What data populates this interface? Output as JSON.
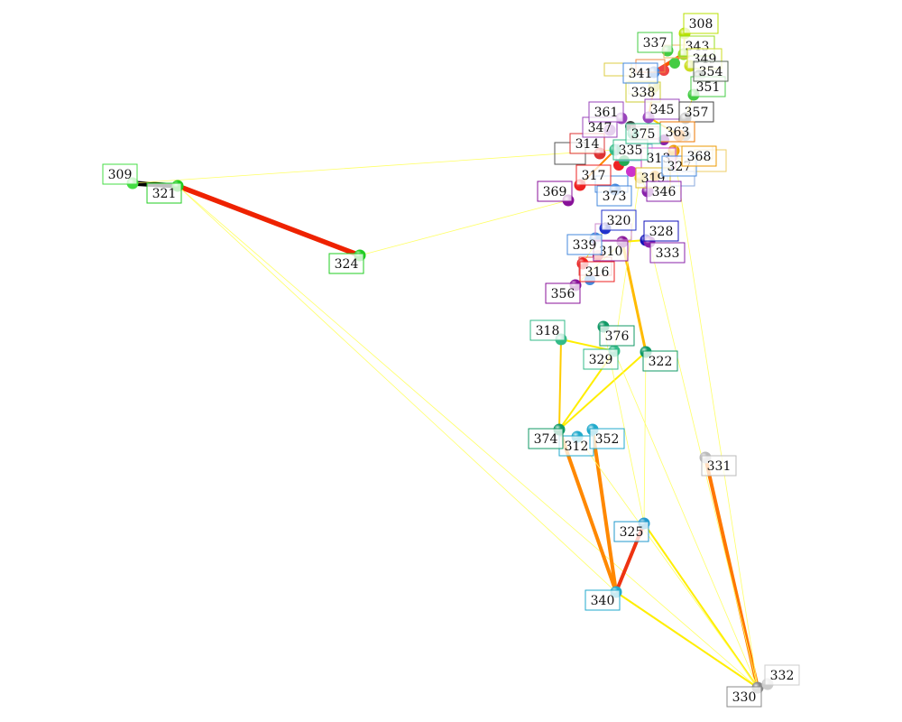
{
  "graph": {
    "nodes": [
      {
        "id": "308",
        "label": "308",
        "color": "#b8e000"
      },
      {
        "id": "309",
        "label": "309",
        "color": "#44dd44"
      },
      {
        "id": "310",
        "label": "310",
        "color": "#8b1a9b"
      },
      {
        "id": "312",
        "label": "312",
        "color": "#22aacc"
      },
      {
        "id": "313",
        "label": "313",
        "color": "#cc44cc"
      },
      {
        "id": "314",
        "label": "314",
        "color": "#dd3333"
      },
      {
        "id": "316",
        "label": "316",
        "color": "#ee2222"
      },
      {
        "id": "317",
        "label": "317",
        "color": "#ee2222"
      },
      {
        "id": "318",
        "label": "318",
        "color": "#33bb88"
      },
      {
        "id": "319",
        "label": "319",
        "color": "#ddbb22"
      },
      {
        "id": "320",
        "label": "320",
        "color": "#2233cc"
      },
      {
        "id": "321",
        "label": "321",
        "color": "#22cc22"
      },
      {
        "id": "322",
        "label": "322",
        "color": "#119966"
      },
      {
        "id": "324",
        "label": "324",
        "color": "#22cc22"
      },
      {
        "id": "325",
        "label": "325",
        "color": "#2299cc"
      },
      {
        "id": "327",
        "label": "327",
        "color": "#4488dd"
      },
      {
        "id": "328",
        "label": "328",
        "color": "#1111bb"
      },
      {
        "id": "329",
        "label": "329",
        "color": "#33bb88"
      },
      {
        "id": "330",
        "label": "330",
        "color": "#888888"
      },
      {
        "id": "331",
        "label": "331",
        "color": "#bbbbbb"
      },
      {
        "id": "332",
        "label": "332",
        "color": "#cccccc"
      },
      {
        "id": "333",
        "label": "333",
        "color": "#8822aa"
      },
      {
        "id": "335",
        "label": "335",
        "color": "#33bb88"
      },
      {
        "id": "337",
        "label": "337",
        "color": "#44cc44"
      },
      {
        "id": "338",
        "label": "338",
        "color": "#cccc33"
      },
      {
        "id": "339",
        "label": "339",
        "color": "#4488dd"
      },
      {
        "id": "340",
        "label": "340",
        "color": "#22aacc"
      },
      {
        "id": "341",
        "label": "341",
        "color": "#4488dd"
      },
      {
        "id": "343",
        "label": "343",
        "color": "#99dd22"
      },
      {
        "id": "345",
        "label": "345",
        "color": "#9944bb"
      },
      {
        "id": "346",
        "label": "346",
        "color": "#8822aa"
      },
      {
        "id": "347",
        "label": "347",
        "color": "#9944bb"
      },
      {
        "id": "349",
        "label": "349",
        "color": "#ccdd22"
      },
      {
        "id": "351",
        "label": "351",
        "color": "#44cc44"
      },
      {
        "id": "352",
        "label": "352",
        "color": "#22aacc"
      },
      {
        "id": "354",
        "label": "354",
        "color": "#556655"
      },
      {
        "id": "356",
        "label": "356",
        "color": "#881199"
      },
      {
        "id": "357",
        "label": "357",
        "color": "#444444"
      },
      {
        "id": "361",
        "label": "361",
        "color": "#9944bb"
      },
      {
        "id": "363",
        "label": "363",
        "color": "#ee7700"
      },
      {
        "id": "368",
        "label": "368",
        "color": "#ee9900"
      },
      {
        "id": "369",
        "label": "369",
        "color": "#881199"
      },
      {
        "id": "373",
        "label": "373",
        "color": "#4488dd"
      },
      {
        "id": "374",
        "label": "374",
        "color": "#119966"
      },
      {
        "id": "375",
        "label": "375",
        "color": "#33bb88"
      },
      {
        "id": "376",
        "label": "376",
        "color": "#119966"
      }
    ],
    "edges": [
      {
        "source": "309",
        "target": "321",
        "weight": 5,
        "color": "#000000"
      },
      {
        "source": "321",
        "target": "324",
        "weight": 5,
        "color": "#ee2200"
      },
      {
        "source": "309",
        "target": "335",
        "weight": 1,
        "color": "#ffff66"
      },
      {
        "source": "324",
        "target": "369",
        "weight": 1,
        "color": "#ffff66"
      },
      {
        "source": "321",
        "target": "340",
        "weight": 1,
        "color": "#ffff66"
      },
      {
        "source": "321",
        "target": "330",
        "weight": 1,
        "color": "#ffff66"
      },
      {
        "source": "374",
        "target": "340",
        "weight": 4,
        "color": "#ff8800"
      },
      {
        "source": "352",
        "target": "340",
        "weight": 4,
        "color": "#ff8800"
      },
      {
        "source": "325",
        "target": "340",
        "weight": 4,
        "color": "#ee3311"
      },
      {
        "source": "331",
        "target": "330",
        "weight": 4,
        "color": "#ff7700"
      },
      {
        "source": "340",
        "target": "330",
        "weight": 2,
        "color": "#ffee00"
      },
      {
        "source": "325",
        "target": "330",
        "weight": 2,
        "color": "#ffee00"
      },
      {
        "source": "318",
        "target": "374",
        "weight": 2,
        "color": "#ffcc00"
      },
      {
        "source": "374",
        "target": "322",
        "weight": 2,
        "color": "#ffee00"
      },
      {
        "source": "374",
        "target": "329",
        "weight": 2,
        "color": "#ffee00"
      },
      {
        "source": "322",
        "target": "310",
        "weight": 3,
        "color": "#ffbb00"
      },
      {
        "source": "318",
        "target": "329",
        "weight": 2,
        "color": "#ffee00"
      },
      {
        "source": "343",
        "target": "341",
        "weight": 4,
        "color": "#ff5500"
      },
      {
        "source": "329",
        "target": "330",
        "weight": 1,
        "color": "#ffff66"
      },
      {
        "source": "322",
        "target": "325",
        "weight": 1,
        "color": "#ffff66"
      },
      {
        "source": "333",
        "target": "330",
        "weight": 1,
        "color": "#ffff66"
      },
      {
        "source": "368",
        "target": "330",
        "weight": 1,
        "color": "#ffff66"
      },
      {
        "source": "345",
        "target": "329",
        "weight": 1,
        "color": "#ffff66"
      },
      {
        "source": "328",
        "target": "310",
        "weight": 2,
        "color": "#ffee00"
      },
      {
        "source": "376",
        "target": "325",
        "weight": 1,
        "color": "#ffff66"
      },
      {
        "source": "335",
        "target": "317",
        "weight": 2,
        "color": "#ff8800"
      },
      {
        "source": "363",
        "target": "345",
        "weight": 2,
        "color": "#ffcc00"
      },
      {
        "source": "343",
        "target": "308",
        "weight": 2,
        "color": "#ffee00"
      },
      {
        "source": "338",
        "target": "345",
        "weight": 2,
        "color": "#ff9900"
      },
      {
        "source": "320",
        "target": "316",
        "weight": 1,
        "color": "#ffee00"
      },
      {
        "source": "312",
        "target": "330",
        "weight": 1,
        "color": "#ffff66"
      },
      {
        "source": "356",
        "target": "310",
        "weight": 1,
        "color": "#ffee00"
      },
      {
        "source": "357",
        "target": "351",
        "weight": 1,
        "color": "#ffee00"
      },
      {
        "source": "319",
        "target": "346",
        "weight": 1,
        "color": "#ffee00"
      }
    ]
  }
}
